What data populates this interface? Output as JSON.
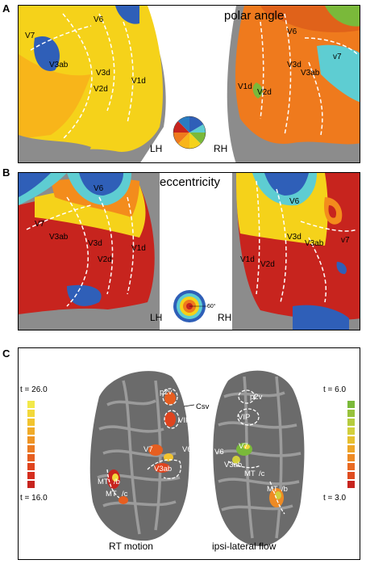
{
  "panel_a": {
    "letter": "A",
    "title": "polar angle",
    "left_hemisphere": "LH",
    "right_hemisphere": "RH",
    "left_labels": [
      "V7",
      "V6",
      "V3ab",
      "V3d",
      "V2d",
      "V1d"
    ],
    "right_labels": [
      "V6",
      "V3d",
      "V3ab",
      "v7",
      "V1d",
      "V2d"
    ]
  },
  "panel_b": {
    "letter": "B",
    "title": "eccentricity",
    "left_hemisphere": "LH",
    "right_hemisphere": "RH",
    "legend_value": "60°",
    "left_labels": [
      "V7",
      "V6",
      "V3ab",
      "V3d",
      "V2d",
      "V1d"
    ],
    "right_labels": [
      "V6",
      "V3d",
      "V3ab",
      "v7",
      "V1d",
      "V2d"
    ]
  },
  "panel_c": {
    "letter": "C",
    "left_scale": {
      "top": "t = 26.0",
      "bottom": "t = 16.0"
    },
    "right_scale": {
      "top": "t = 6.0",
      "bottom": "t = 3.0"
    },
    "left_brain_labels": [
      "p2v",
      "Csv",
      "VIP",
      "V7",
      "V6",
      "V3ab",
      "MT",
      "/b",
      "MT",
      "/c"
    ],
    "right_brain_labels": [
      "p2v",
      "VIP",
      "V6",
      "V7",
      "V3ab",
      "MT",
      "/c",
      "MT",
      "/b"
    ],
    "left_caption": "RT motion",
    "right_caption": "ipsi-lateral flow"
  },
  "colors": {
    "yellow": "#f5d21a",
    "orange": "#ef7a1d",
    "red": "#c7241e",
    "blue": "#2f5fb8",
    "cyan": "#5ecdd2",
    "green": "#7ab93a",
    "gray": "#8c8c8c"
  }
}
